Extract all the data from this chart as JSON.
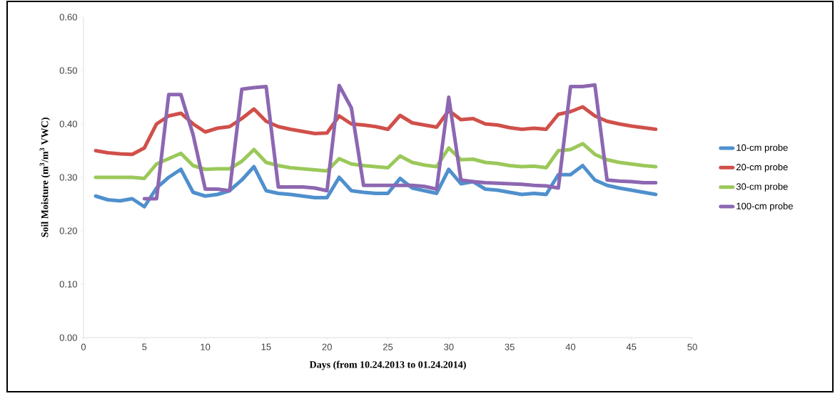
{
  "chart_data": {
    "type": "line",
    "xlabel": "Days (from 10.24.2013 to 01.24.2014)",
    "ylabel": "Soil Moisture (m$^{3}$/m$^{3}$ VWC)",
    "x": [
      1,
      2,
      3,
      4,
      5,
      6,
      7,
      8,
      9,
      10,
      11,
      12,
      13,
      14,
      15,
      16,
      17,
      18,
      19,
      20,
      21,
      22,
      23,
      24,
      25,
      26,
      27,
      28,
      29,
      30,
      31,
      32,
      33,
      34,
      35,
      36,
      37,
      38,
      39,
      40,
      41,
      42,
      43,
      44,
      45,
      46,
      47
    ],
    "series": [
      {
        "name": "10-cm probe",
        "color": "#4f90cd",
        "values": [
          0.265,
          0.258,
          0.256,
          0.26,
          0.245,
          0.28,
          0.3,
          0.315,
          0.272,
          0.265,
          0.268,
          0.275,
          0.295,
          0.32,
          0.275,
          0.27,
          0.268,
          0.265,
          0.262,
          0.262,
          0.3,
          0.275,
          0.272,
          0.27,
          0.27,
          0.298,
          0.28,
          0.275,
          0.27,
          0.315,
          0.288,
          0.292,
          0.278,
          0.276,
          0.272,
          0.268,
          0.27,
          0.268,
          0.305,
          0.305,
          0.322,
          0.295,
          0.285,
          0.28,
          0.276,
          0.272,
          0.268
        ]
      },
      {
        "name": "20-cm probe",
        "color": "#d0504a",
        "values": [
          0.35,
          0.346,
          0.344,
          0.343,
          0.355,
          0.4,
          0.415,
          0.42,
          0.4,
          0.385,
          0.392,
          0.395,
          0.41,
          0.428,
          0.405,
          0.395,
          0.39,
          0.386,
          0.382,
          0.383,
          0.415,
          0.4,
          0.398,
          0.395,
          0.39,
          0.416,
          0.402,
          0.398,
          0.394,
          0.425,
          0.408,
          0.41,
          0.4,
          0.398,
          0.393,
          0.39,
          0.392,
          0.39,
          0.418,
          0.423,
          0.432,
          0.415,
          0.405,
          0.4,
          0.396,
          0.393,
          0.39
        ]
      },
      {
        "name": "30-cm probe",
        "color": "#9bc85a",
        "values": [
          0.3,
          0.3,
          0.3,
          0.3,
          0.298,
          0.325,
          0.335,
          0.345,
          0.322,
          0.315,
          0.316,
          0.316,
          0.33,
          0.352,
          0.328,
          0.322,
          0.318,
          0.316,
          0.314,
          0.312,
          0.335,
          0.325,
          0.322,
          0.32,
          0.318,
          0.34,
          0.328,
          0.323,
          0.32,
          0.355,
          0.333,
          0.334,
          0.328,
          0.326,
          0.322,
          0.32,
          0.321,
          0.318,
          0.35,
          0.352,
          0.363,
          0.343,
          0.333,
          0.328,
          0.325,
          0.322,
          0.32
        ]
      },
      {
        "name": "100-cm probe",
        "color": "#8d67b2",
        "values": [
          null,
          null,
          null,
          null,
          0.26,
          0.26,
          0.455,
          0.455,
          0.38,
          0.278,
          0.278,
          0.275,
          0.465,
          0.468,
          0.47,
          0.282,
          0.282,
          0.282,
          0.28,
          0.275,
          0.472,
          0.43,
          0.285,
          0.285,
          0.285,
          0.285,
          0.285,
          0.283,
          0.278,
          0.45,
          0.295,
          0.292,
          0.29,
          0.289,
          0.288,
          0.287,
          0.285,
          0.284,
          0.28,
          0.47,
          0.47,
          0.473,
          0.295,
          0.293,
          0.292,
          0.29,
          0.29
        ]
      }
    ],
    "xlim": [
      0,
      50
    ],
    "xticks": [
      0,
      5,
      10,
      15,
      20,
      25,
      30,
      35,
      40,
      45,
      50
    ],
    "ylim": [
      0,
      0.6
    ],
    "yticks": [
      {
        "value": 0,
        "label": "0.00"
      },
      {
        "value": 0.1,
        "label": "0.10"
      },
      {
        "value": 0.2,
        "label": "0.20"
      },
      {
        "value": 0.3,
        "label": "0.30"
      },
      {
        "value": 0.4,
        "label": "0.40"
      },
      {
        "value": 0.5,
        "label": "0.50"
      },
      {
        "value": 0.6,
        "label": "0.60"
      }
    ],
    "grid": false,
    "legend": "right",
    "marker": "none",
    "line_style": "solid"
  }
}
